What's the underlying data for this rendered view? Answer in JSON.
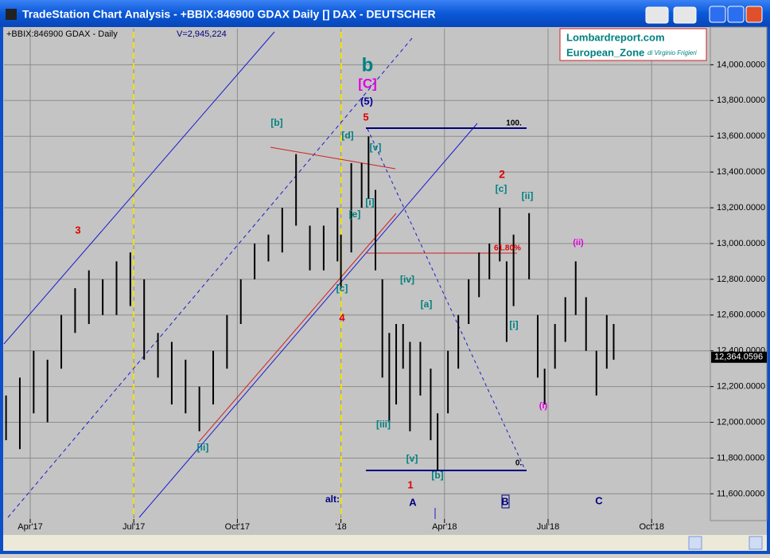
{
  "window_title": "TradeStation Chart Analysis - +BBIX:846900 GDAX Daily [] DAX - DEUTSCHER",
  "chart_data": {
    "type": "range_bar",
    "symbol_label": "+BBIX:846900 GDAX - Daily",
    "volume_label": "V=2,945,224",
    "watermark": {
      "site": "Lombardreport.com",
      "zone": "European_Zone",
      "author": "di Virginio Frigieri"
    },
    "xlim": [
      2.24,
      22.7
    ],
    "xticks": [
      {
        "value": 3,
        "label": "Apr'17"
      },
      {
        "value": 6,
        "label": "Jul'17"
      },
      {
        "value": 9,
        "label": "Oct'17"
      },
      {
        "value": 12,
        "label": "'18"
      },
      {
        "value": 15,
        "label": "Apr'18"
      },
      {
        "value": 18,
        "label": "Jul'18"
      },
      {
        "value": 21,
        "label": "Oct'18"
      }
    ],
    "ylim": [
      11330,
      14300
    ],
    "yticks": [
      {
        "value": 11600,
        "label": "11,600.0000"
      },
      {
        "value": 11800,
        "label": "11,800.0000"
      },
      {
        "value": 12000,
        "label": "12,000.0000"
      },
      {
        "value": 12200,
        "label": "12,200.0000"
      },
      {
        "value": 12400,
        "label": "12,400.0000"
      },
      {
        "value": 12600,
        "label": "12,600.0000"
      },
      {
        "value": 12800,
        "label": "12,800.0000"
      },
      {
        "value": 13000,
        "label": "13,000.0000"
      },
      {
        "value": 13200,
        "label": "13,200.0000"
      },
      {
        "value": 13400,
        "label": "13,400.0000"
      },
      {
        "value": 13600,
        "label": "13,600.0000"
      },
      {
        "value": 13800,
        "label": "13,800.0000"
      },
      {
        "value": 14000,
        "label": "14,000.0000"
      }
    ],
    "grid": true,
    "last_price": {
      "value": 12364.0596,
      "label": "12,364.0596"
    },
    "series": [
      {
        "name": "GDAX",
        "color": "#000000",
        "x": [
          2.3,
          2.7,
          3.1,
          3.5,
          3.9,
          4.3,
          4.7,
          5.1,
          5.5,
          5.9,
          6.3,
          6.7,
          7.1,
          7.5,
          7.9,
          8.3,
          8.7,
          9.1,
          9.5,
          9.9,
          10.3,
          10.7,
          11.1,
          11.5,
          11.9,
          12.0,
          12.3,
          12.6,
          12.8,
          13.0,
          13.2,
          13.4,
          13.6,
          13.8,
          14.0,
          14.3,
          14.6,
          14.8,
          15.1,
          15.4,
          15.7,
          16.0,
          16.3,
          16.6,
          16.8,
          17.0,
          17.45,
          17.7,
          17.9,
          18.2,
          18.5,
          18.8,
          19.1,
          19.4,
          19.7,
          19.9
        ],
        "high": [
          12150,
          12250,
          12400,
          12350,
          12600,
          12750,
          12850,
          12800,
          12900,
          12950,
          12800,
          12500,
          12450,
          12350,
          12200,
          12400,
          12600,
          12800,
          13000,
          13050,
          13200,
          13500,
          13100,
          13100,
          13200,
          13050,
          13450,
          13450,
          13600,
          13300,
          12800,
          12500,
          12550,
          12550,
          12450,
          12450,
          12300,
          12050,
          12400,
          12600,
          12800,
          12950,
          13000,
          13200,
          12900,
          13050,
          13170,
          12600,
          12300,
          12550,
          12700,
          12900,
          12700,
          12400,
          12600,
          12550
        ],
        "low": [
          11900,
          11850,
          12050,
          12000,
          12300,
          12500,
          12550,
          12600,
          12600,
          12650,
          12350,
          12250,
          12100,
          12050,
          11950,
          12100,
          12300,
          12550,
          12800,
          12900,
          12950,
          13100,
          12850,
          12850,
          12900,
          12750,
          12950,
          13200,
          13250,
          12850,
          12250,
          12000,
          12100,
          12300,
          11950,
          12150,
          11900,
          11730,
          12050,
          12300,
          12550,
          12700,
          12800,
          12900,
          12450,
          12650,
          12800,
          12250,
          12100,
          12300,
          12450,
          12600,
          12400,
          12150,
          12300,
          12350
        ]
      }
    ],
    "annotations": [
      {
        "text": "b",
        "color": "#008080"
      },
      {
        "text": "[C]",
        "color": "#e000e0"
      },
      {
        "text": "(5)",
        "color": "#000099"
      },
      {
        "text": "5",
        "color": "#e00000"
      },
      {
        "text": "[b]",
        "color": "#008080"
      },
      {
        "text": "[d]",
        "color": "#008080"
      },
      {
        "text": "[v]",
        "color": "#008080"
      },
      {
        "text": "[i]",
        "color": "#008080"
      },
      {
        "text": "[e]",
        "color": "#008080"
      },
      {
        "text": "3",
        "color": "#e00000"
      },
      {
        "text": "[c]",
        "color": "#008080"
      },
      {
        "text": "4",
        "color": "#e00000"
      },
      {
        "text": "[iv]",
        "color": "#008080"
      },
      {
        "text": "[a]",
        "color": "#008080"
      },
      {
        "text": "[iii]",
        "color": "#008080"
      },
      {
        "text": "[ii]",
        "color": "#008080"
      },
      {
        "text": "[v]",
        "color": "#008080"
      },
      {
        "text": "[b]",
        "color": "#008080"
      },
      {
        "text": "1",
        "color": "#e00000"
      },
      {
        "text": "2",
        "color": "#e00000"
      },
      {
        "text": "[c]",
        "color": "#008080"
      },
      {
        "text": "[ii]",
        "color": "#008080"
      },
      {
        "text": "61.80%",
        "color": "#e00000"
      },
      {
        "text": "[i]",
        "color": "#008080"
      },
      {
        "text": "(ii)",
        "color": "#e000e0"
      },
      {
        "text": "(i)",
        "color": "#e000e0"
      },
      {
        "text": "100.",
        "color": "#000000"
      },
      {
        "text": "0.",
        "color": "#000000"
      },
      {
        "text": "alt:",
        "color": "#000080"
      },
      {
        "text": "A",
        "color": "#000080"
      },
      {
        "text": "B",
        "color": "#000080"
      },
      {
        "text": "C",
        "color": "#000080"
      }
    ]
  }
}
